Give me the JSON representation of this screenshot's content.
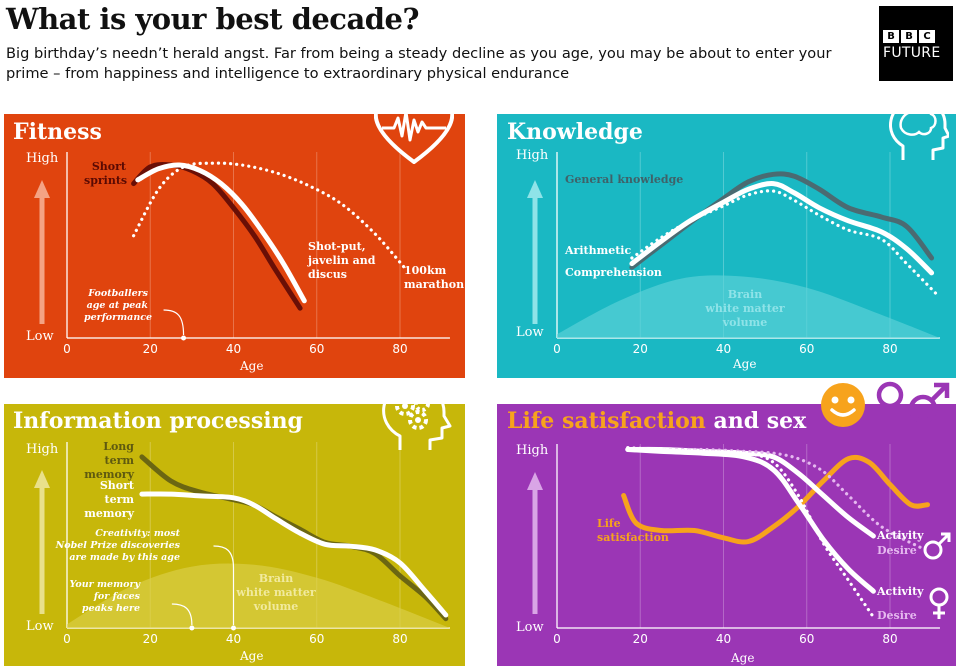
{
  "header": {
    "title": "What is your best decade?",
    "subtitle": "Big birthday’s needn’t herald angst. Far from being a steady decline as you age, you may be about to enter your prime – from happiness and intelligence to extraordinary physical endurance",
    "logo_bbc": [
      "B",
      "B",
      "C"
    ],
    "logo_future": "FUTURE"
  },
  "colors": {
    "fitness_bg": "#e0440e",
    "knowledge_bg": "#1ab8c3",
    "info_bg": "#c7b70a",
    "life_bg": "#9b36b5",
    "life_title_accent": "#f7a31c"
  },
  "axis": {
    "high": "High",
    "low": "Low",
    "xlabel": "Age",
    "ticks": [
      "0",
      "20",
      "40",
      "60",
      "80"
    ]
  },
  "icons": {
    "fitness": "heart-heartbeat-icon",
    "knowledge": "head-brain-icon",
    "info": "head-gears-icon",
    "life": [
      "smiley-face-icon",
      "female-symbol-icon",
      "male-symbol-icon"
    ]
  },
  "panels": {
    "fitness": {
      "title": "Fitness",
      "labels": {
        "short_sprints": "Short\nsprints",
        "shotput": "Shot-put,\njavelin and\ndiscus",
        "marathon": "100km\nmarathon"
      },
      "note": "Footballers\nage at peak\nperformance"
    },
    "knowledge": {
      "title": "Knowledge",
      "labels": {
        "general": "General knowledge",
        "arithmetic": "Arithmetic",
        "comprehension": "Comprehension",
        "brain": "Brain\nwhite matter\nvolume"
      }
    },
    "info": {
      "title": "Information processing",
      "labels": {
        "long_term": "Long term\nmemory",
        "short_term": "Short term\nmemory",
        "brain": "Brain\nwhite matter\nvolume"
      },
      "notes": {
        "creativity": "Creativity: most\nNobel Prize discoveries\nare made by this age",
        "faces": "Your memory\nfor faces\npeaks here"
      }
    },
    "life": {
      "title_part1": "Life satisfaction",
      "title_part2": "and sex",
      "labels": {
        "satisfaction": "Life\nsatisfaction",
        "activity_m": "Activity",
        "desire_m": "Desire",
        "activity_f": "Activity",
        "desire_f": "Desire"
      }
    }
  },
  "chart_data": [
    {
      "type": "line",
      "title": "Fitness",
      "xlabel": "Age",
      "ylabel": "",
      "xlim": [
        0,
        92
      ],
      "ylim": [
        0,
        1
      ],
      "series": [
        {
          "name": "Short sprints",
          "x": [
            16,
            20,
            25,
            30,
            35,
            40,
            45,
            50,
            56
          ],
          "y": [
            0.83,
            0.92,
            0.93,
            0.9,
            0.83,
            0.7,
            0.55,
            0.37,
            0.16
          ],
          "color": "#6a0f06"
        },
        {
          "name": "Shot-put, javelin and discus",
          "x": [
            17,
            22,
            27,
            32,
            37,
            42,
            47,
            52,
            57
          ],
          "y": [
            0.85,
            0.91,
            0.93,
            0.9,
            0.83,
            0.72,
            0.57,
            0.4,
            0.2
          ],
          "color": "#ffffff"
        },
        {
          "name": "100km marathon",
          "x": [
            16,
            22,
            28,
            35,
            42,
            50,
            58,
            66,
            74,
            81
          ],
          "y": [
            0.55,
            0.8,
            0.92,
            0.94,
            0.93,
            0.89,
            0.82,
            0.72,
            0.56,
            0.38
          ],
          "color": "#ffffff",
          "style": "dotted"
        }
      ],
      "annotations": [
        {
          "x": 28,
          "text": "Footballers age at peak performance"
        }
      ]
    },
    {
      "type": "line",
      "title": "Knowledge",
      "xlabel": "Age",
      "ylabel": "",
      "xlim": [
        0,
        92
      ],
      "ylim": [
        0,
        1
      ],
      "series": [
        {
          "name": "General knowledge",
          "x": [
            18,
            25,
            32,
            40,
            46,
            52,
            57,
            63,
            70,
            78,
            84,
            90
          ],
          "y": [
            0.38,
            0.5,
            0.62,
            0.75,
            0.84,
            0.88,
            0.87,
            0.8,
            0.7,
            0.65,
            0.6,
            0.43
          ],
          "color": "#4a6b72"
        },
        {
          "name": "Arithmetic",
          "x": [
            18,
            25,
            32,
            40,
            46,
            52,
            57,
            63,
            70,
            78,
            84,
            90
          ],
          "y": [
            0.4,
            0.52,
            0.63,
            0.73,
            0.8,
            0.83,
            0.78,
            0.7,
            0.63,
            0.57,
            0.48,
            0.35
          ],
          "color": "#ffffff"
        },
        {
          "name": "Comprehension",
          "x": [
            18,
            25,
            32,
            40,
            46,
            52,
            57,
            63,
            70,
            78,
            84,
            91
          ],
          "y": [
            0.43,
            0.54,
            0.63,
            0.71,
            0.77,
            0.79,
            0.74,
            0.66,
            0.58,
            0.53,
            0.4,
            0.24
          ],
          "color": "#ffffff",
          "style": "dotted"
        },
        {
          "name": "Brain white matter volume",
          "x": [
            0,
            15,
            30,
            45,
            60,
            75,
            92
          ],
          "y": [
            0.02,
            0.2,
            0.32,
            0.33,
            0.27,
            0.15,
            0.0
          ],
          "type": "area",
          "color": "#5ed3d9"
        }
      ]
    },
    {
      "type": "line",
      "title": "Information processing",
      "xlabel": "Age",
      "ylabel": "",
      "xlim": [
        0,
        92
      ],
      "ylim": [
        0,
        1
      ],
      "series": [
        {
          "name": "Long term memory",
          "x": [
            18,
            25,
            32,
            40,
            45,
            50,
            56,
            62,
            68,
            74,
            80,
            86,
            91
          ],
          "y": [
            0.92,
            0.79,
            0.73,
            0.69,
            0.66,
            0.6,
            0.53,
            0.46,
            0.44,
            0.4,
            0.28,
            0.17,
            0.05
          ],
          "color": "#6b6612"
        },
        {
          "name": "Short term memory",
          "x": [
            18,
            25,
            32,
            40,
            45,
            50,
            56,
            62,
            68,
            74,
            80,
            86,
            91
          ],
          "y": [
            0.72,
            0.72,
            0.71,
            0.7,
            0.66,
            0.59,
            0.51,
            0.45,
            0.44,
            0.42,
            0.35,
            0.2,
            0.07
          ],
          "color": "#ffffff"
        },
        {
          "name": "Brain white matter volume",
          "x": [
            0,
            15,
            30,
            45,
            60,
            75,
            92
          ],
          "y": [
            0.02,
            0.22,
            0.33,
            0.34,
            0.27,
            0.15,
            0.0
          ],
          "type": "area",
          "color": "#dcd04a"
        }
      ],
      "annotations": [
        {
          "x": 40,
          "text": "Creativity: most Nobel Prize discoveries are made by this age"
        },
        {
          "x": 30,
          "text": "Your memory for faces peaks here"
        }
      ]
    },
    {
      "type": "line",
      "title": "Life satisfaction and sex",
      "xlabel": "Age",
      "ylabel": "",
      "xlim": [
        0,
        92
      ],
      "ylim": [
        0,
        1
      ],
      "series": [
        {
          "name": "Life satisfaction",
          "x": [
            16,
            19,
            25,
            33,
            40,
            46,
            52,
            58,
            64,
            70,
            75,
            80,
            85,
            89
          ],
          "y": [
            0.72,
            0.57,
            0.53,
            0.53,
            0.49,
            0.47,
            0.55,
            0.66,
            0.8,
            0.92,
            0.9,
            0.78,
            0.67,
            0.67
          ],
          "color": "#f7a31c"
        },
        {
          "name": "Male activity",
          "x": [
            17,
            25,
            35,
            45,
            52,
            58,
            64,
            70,
            76
          ],
          "y": [
            0.97,
            0.97,
            0.96,
            0.95,
            0.93,
            0.84,
            0.72,
            0.6,
            0.5
          ],
          "color": "#ffffff"
        },
        {
          "name": "Male desire",
          "x": [
            17,
            25,
            35,
            45,
            52,
            58,
            64,
            70,
            78,
            88
          ],
          "y": [
            0.98,
            0.97,
            0.97,
            0.96,
            0.95,
            0.92,
            0.85,
            0.72,
            0.55,
            0.43
          ],
          "color": "#e5b8ef",
          "style": "dotted"
        },
        {
          "name": "Female activity",
          "x": [
            17,
            25,
            35,
            45,
            52,
            58,
            64,
            70,
            76
          ],
          "y": [
            0.97,
            0.96,
            0.95,
            0.93,
            0.86,
            0.68,
            0.48,
            0.32,
            0.2
          ],
          "color": "#ffffff"
        },
        {
          "name": "Female desire",
          "x": [
            17,
            25,
            35,
            45,
            52,
            58,
            64,
            70,
            76
          ],
          "y": [
            0.98,
            0.97,
            0.96,
            0.95,
            0.9,
            0.72,
            0.46,
            0.26,
            0.06
          ],
          "color": "#ffffff",
          "style": "dotted"
        }
      ]
    }
  ]
}
